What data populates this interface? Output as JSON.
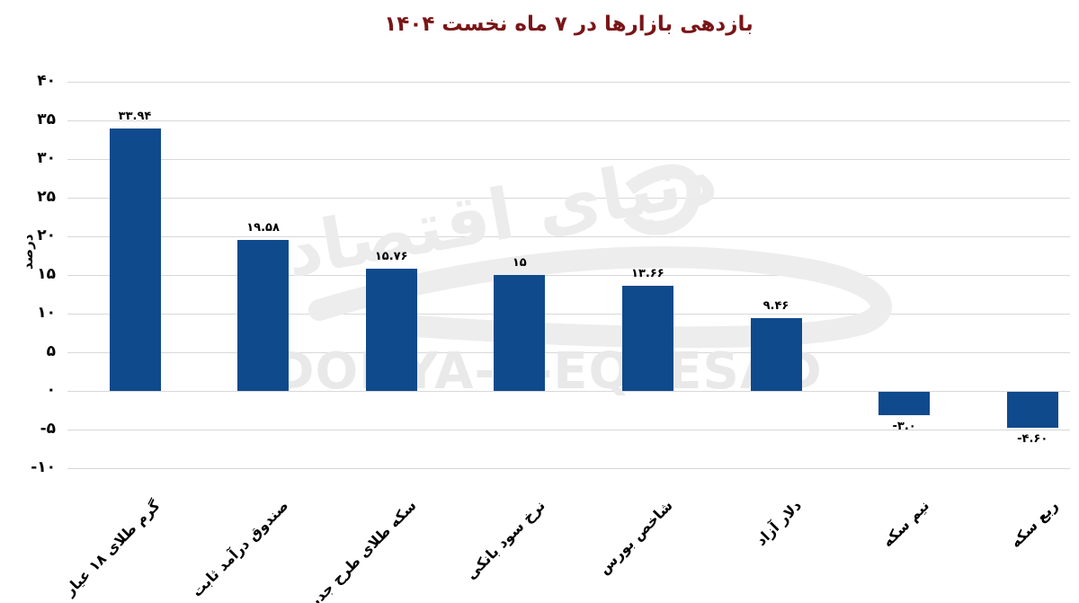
{
  "chart_data": {
    "type": "bar",
    "title": "بازدهی بازارها در  ۷ ماه نخست ۱۴۰۴",
    "title_color": "#7a1518",
    "ylabel": "درصد",
    "categories": [
      "گرم طلای ۱۸ عیار",
      "صندوق درآمد ثابت",
      "سکه طلای طرح جدید",
      "نرخ سود بانکی",
      "شاخص بورس",
      "دلار آزاد",
      "نیم سکه",
      "ربع سکه"
    ],
    "values": [
      33.94,
      19.58,
      15.76,
      15,
      13.66,
      9.46,
      -3.0,
      -4.6
    ],
    "value_labels": [
      "۳۳.۹۴",
      "۱۹.۵۸",
      "۱۵.۷۶",
      "۱۵",
      "۱۳.۶۶",
      "۹.۴۶",
      "-۳.۰",
      "-۴.۶۰"
    ],
    "ytick_values": [
      40,
      35,
      30,
      25,
      20,
      15,
      10,
      5,
      0,
      -5,
      -10
    ],
    "ytick_labels": [
      "۴۰",
      "۳۵",
      "۳۰",
      "۲۵",
      "۲۰",
      "۱۵",
      "۱۰",
      "۵",
      "۰",
      "-۵",
      "-۱۰"
    ],
    "ylim": [
      -10,
      40
    ],
    "grid": true,
    "legend_position": "none",
    "bar_color": "#0f4a8c",
    "grid_color": "#d8d8d8",
    "watermark_fa": "دنیای اقتصاد",
    "watermark_en": "DONYA-E-EQTESAD"
  }
}
